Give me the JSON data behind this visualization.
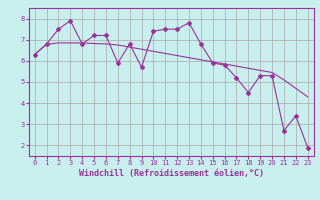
{
  "xlabel": "Windchill (Refroidissement éolien,°C)",
  "bg_color": "#c8eeed",
  "line_color": "#993399",
  "grid_color": "#aaaaaa",
  "x_data": [
    0,
    1,
    2,
    3,
    4,
    5,
    6,
    7,
    8,
    9,
    10,
    11,
    12,
    13,
    14,
    15,
    16,
    17,
    18,
    19,
    20,
    21,
    22,
    23
  ],
  "y_jagged": [
    6.3,
    6.8,
    7.5,
    7.9,
    6.8,
    7.2,
    7.2,
    5.9,
    6.8,
    5.7,
    7.4,
    7.5,
    7.5,
    7.8,
    6.8,
    5.9,
    5.8,
    5.2,
    4.5,
    5.3,
    5.3,
    2.7,
    3.4,
    1.9
  ],
  "y_trend": [
    6.3,
    6.78,
    6.85,
    6.85,
    6.85,
    6.82,
    6.8,
    6.75,
    6.65,
    6.55,
    6.45,
    6.35,
    6.25,
    6.15,
    6.05,
    5.95,
    5.85,
    5.75,
    5.65,
    5.55,
    5.45,
    5.1,
    4.7,
    4.3
  ],
  "ylim": [
    1.5,
    8.5
  ],
  "xlim": [
    -0.5,
    23.5
  ],
  "yticks": [
    2,
    3,
    4,
    5,
    6,
    7,
    8
  ],
  "xticks": [
    0,
    1,
    2,
    3,
    4,
    5,
    6,
    7,
    8,
    9,
    10,
    11,
    12,
    13,
    14,
    15,
    16,
    17,
    18,
    19,
    20,
    21,
    22,
    23
  ],
  "tick_fontsize": 5.0,
  "xlabel_fontsize": 6.0
}
